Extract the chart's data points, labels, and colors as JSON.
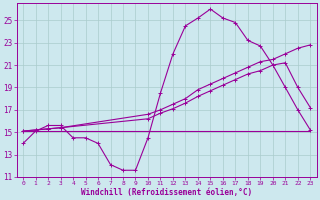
{
  "bg_color": "#cde8ee",
  "grid_color": "#aacccc",
  "line_color": "#990099",
  "xlabel": "Windchill (Refroidissement éolien,°C)",
  "xlim": [
    -0.5,
    23.5
  ],
  "ylim": [
    11,
    26.5
  ],
  "yticks": [
    11,
    13,
    15,
    17,
    19,
    21,
    23,
    25
  ],
  "xticks": [
    0,
    1,
    2,
    3,
    4,
    5,
    6,
    7,
    8,
    9,
    10,
    11,
    12,
    13,
    14,
    15,
    16,
    17,
    18,
    19,
    20,
    21,
    22,
    23
  ],
  "line1_x": [
    0,
    1,
    2,
    3,
    4,
    5,
    6,
    7,
    8,
    9,
    10,
    11,
    12,
    13,
    14,
    15,
    16,
    17,
    18,
    19,
    20,
    21,
    22,
    23
  ],
  "line1_y": [
    14.0,
    15.1,
    15.6,
    15.6,
    14.5,
    14.5,
    14.0,
    12.1,
    11.6,
    11.6,
    14.5,
    18.5,
    22.0,
    24.5,
    25.2,
    26.0,
    25.2,
    24.8,
    23.2,
    22.7,
    21.0,
    21.2,
    19.0,
    17.2
  ],
  "line2_x": [
    0,
    1,
    2,
    3,
    4,
    5,
    6,
    7,
    8,
    9,
    10,
    11,
    12,
    13,
    14,
    15,
    16,
    17,
    18,
    19,
    20,
    21,
    22,
    23
  ],
  "line2_y": [
    15.1,
    15.1,
    15.1,
    15.1,
    15.1,
    15.1,
    15.1,
    15.1,
    15.1,
    15.1,
    15.1,
    15.1,
    15.1,
    15.1,
    15.1,
    15.1,
    15.1,
    15.1,
    15.1,
    15.1,
    15.1,
    15.1,
    15.1,
    15.1
  ],
  "line3_x": [
    0,
    1,
    2,
    3,
    10,
    11,
    12,
    13,
    14,
    15,
    16,
    17,
    18,
    19,
    20,
    21,
    22,
    23
  ],
  "line3_y": [
    15.1,
    15.2,
    15.3,
    15.4,
    16.6,
    17.0,
    17.5,
    18.0,
    18.8,
    19.3,
    19.8,
    20.3,
    20.8,
    21.3,
    21.5,
    22.0,
    22.5,
    22.8
  ],
  "line4_x": [
    0,
    1,
    2,
    3,
    10,
    11,
    12,
    13,
    14,
    15,
    16,
    17,
    18,
    19,
    20,
    21,
    22,
    23
  ],
  "line4_y": [
    15.1,
    15.2,
    15.3,
    15.4,
    16.2,
    16.7,
    17.1,
    17.6,
    18.2,
    18.7,
    19.2,
    19.7,
    20.2,
    20.5,
    21.0,
    19.0,
    17.0,
    15.2
  ]
}
